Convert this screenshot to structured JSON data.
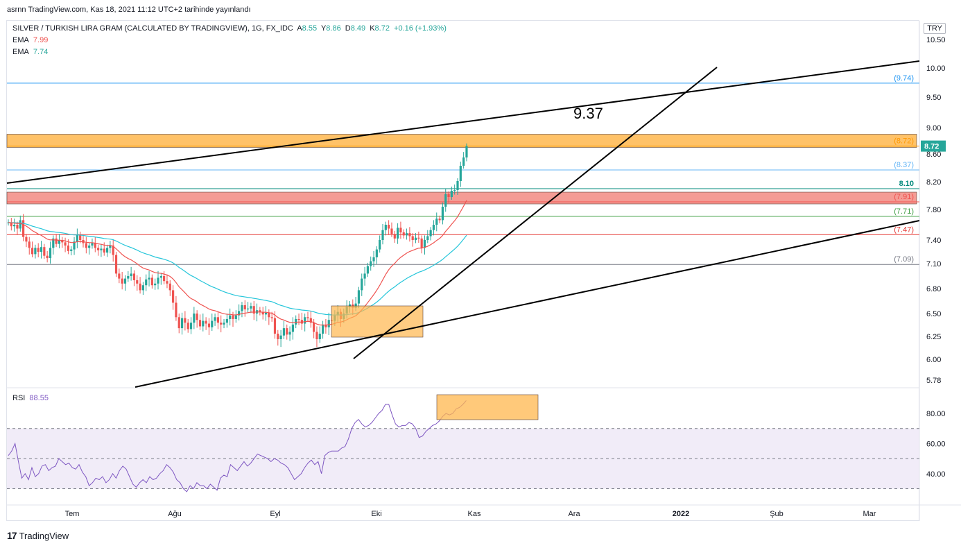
{
  "header": {
    "published": "asrnn TradingView.com, Kas 18, 2021 11:12 UTC+2 tarihinde yayınlandı"
  },
  "legend": {
    "symbol": "SILVER / TURKISH LIRA GRAM (CALCULATED BY TRADINGVIEW), 1G, FX_IDC",
    "a_label": "A",
    "a_value": "8.55",
    "y_label": "Y",
    "y_value": "8.86",
    "d_label": "D",
    "d_value": "8.49",
    "k_label": "K",
    "k_value": "8.72",
    "change": "+0.16 (+1.93%)",
    "ema1_label": "EMA",
    "ema1_value": "7.99",
    "ema2_label": "EMA",
    "ema2_value": "7.74",
    "rsi_label": "RSI",
    "rsi_value": "88.55"
  },
  "currency": "TRY",
  "annotation_text": "9.37",
  "brand": "TradingView",
  "colors": {
    "up": "#26a69a",
    "down": "#ef5350",
    "ema_fast": "#ef5350",
    "ema_slow": "#26c6da",
    "rsi": "#7e57c2",
    "rsi_band": "#ede7f6",
    "zone_orange": "#ffb74d",
    "zone_red": "#f28b82"
  },
  "chart_data": [
    {
      "type": "candlestick",
      "title": "SILVER / TURKISH LIRA GRAM (CALCULATED BY TRADINGVIEW), 1G, FX_IDC",
      "x_tick_labels": [
        "Tem",
        "Ağu",
        "Eyl",
        "Eki",
        "Kas",
        "Ara",
        "2022",
        "Şub",
        "Mar"
      ],
      "y_tick_labels": [
        "10.50",
        "10.00",
        "9.50",
        "9.00",
        "8.60",
        "8.20",
        "7.80",
        "7.40",
        "7.10",
        "6.80",
        "6.50",
        "6.25",
        "6.00",
        "5.78"
      ],
      "last_price": "8.72",
      "price_levels": [
        {
          "label": "(9.74)",
          "value": 9.74,
          "color": "#2196f3"
        },
        {
          "label": "(8.72)",
          "value": 8.72,
          "color": "#ff9800"
        },
        {
          "label": "(8.37)",
          "value": 8.37,
          "color": "#64b5f6"
        },
        {
          "label": "8.10",
          "value": 8.1,
          "color": "#00897b"
        },
        {
          "label": "(7.91)",
          "value": 7.91,
          "color": "#ef5350"
        },
        {
          "label": "(7.71)",
          "value": 7.71,
          "color": "#43a047"
        },
        {
          "label": "(7.47)",
          "value": 7.47,
          "color": "#e53935"
        },
        {
          "label": "(7.09)",
          "value": 7.09,
          "color": "#787b86"
        }
      ],
      "zones": [
        {
          "from": 8.7,
          "to": 8.9,
          "color": "#ffb74d"
        },
        {
          "from": 7.88,
          "to": 8.05,
          "color": "#f28b82"
        }
      ],
      "closes": [
        7.63,
        7.58,
        7.6,
        7.55,
        7.66,
        7.44,
        7.38,
        7.3,
        7.22,
        7.3,
        7.25,
        7.31,
        7.2,
        7.17,
        7.3,
        7.42,
        7.35,
        7.4,
        7.37,
        7.33,
        7.26,
        7.28,
        7.38,
        7.47,
        7.4,
        7.36,
        7.3,
        7.33,
        7.36,
        7.3,
        7.27,
        7.29,
        7.24,
        7.3,
        7.33,
        7.21,
        6.98,
        6.92,
        6.86,
        6.92,
        6.95,
        6.98,
        6.9,
        6.86,
        6.78,
        6.84,
        6.91,
        6.93,
        6.84,
        6.86,
        6.93,
        6.95,
        6.89,
        6.86,
        6.78,
        6.63,
        6.46,
        6.34,
        6.45,
        6.4,
        6.33,
        6.4,
        6.5,
        6.43,
        6.36,
        6.42,
        6.39,
        6.35,
        6.42,
        6.46,
        6.4,
        6.38,
        6.4,
        6.44,
        6.48,
        6.44,
        6.48,
        6.53,
        6.6,
        6.55,
        6.56,
        6.59,
        6.5,
        6.54,
        6.52,
        6.49,
        6.51,
        6.46,
        6.45,
        6.28,
        6.22,
        6.26,
        6.34,
        6.27,
        6.3,
        6.38,
        6.44,
        6.43,
        6.39,
        6.46,
        6.45,
        6.4,
        6.3,
        6.22,
        6.28,
        6.38,
        6.35,
        6.43,
        6.42,
        6.48,
        6.52,
        6.44,
        6.5,
        6.58,
        6.61,
        6.57,
        6.62,
        6.78,
        6.92,
        6.98,
        7.07,
        7.13,
        7.18,
        7.28,
        7.4,
        7.53,
        7.6,
        7.55,
        7.48,
        7.42,
        7.56,
        7.5,
        7.46,
        7.49,
        7.45,
        7.4,
        7.43,
        7.42,
        7.3,
        7.4,
        7.45,
        7.53,
        7.6,
        7.68,
        7.66,
        7.84,
        8.02,
        7.98,
        8.07,
        8.08,
        8.21,
        8.43,
        8.55,
        8.72
      ],
      "ema_fast_last": 7.99,
      "ema_slow_last": 7.74,
      "annotation": "9.37"
    },
    {
      "type": "line",
      "title": "RSI",
      "y_tick_labels": [
        "80.00",
        "60.00",
        "40.00"
      ],
      "bands": [
        70,
        50,
        30
      ],
      "values": [
        52,
        55,
        60,
        48,
        37,
        40,
        36,
        44,
        38,
        40,
        45,
        46,
        42,
        44,
        45,
        50,
        48,
        46,
        47,
        44,
        43,
        46,
        41,
        38,
        32,
        34,
        37,
        36,
        38,
        34,
        36,
        40,
        37,
        42,
        45,
        43,
        38,
        33,
        31,
        34,
        36,
        34,
        38,
        36,
        37,
        40,
        42,
        46,
        44,
        41,
        36,
        34,
        30,
        28,
        32,
        30,
        34,
        32,
        32,
        30,
        33,
        31,
        29,
        37,
        39,
        38,
        46,
        44,
        42,
        45,
        48,
        45,
        47,
        50,
        53,
        52,
        51,
        50,
        48,
        50,
        49,
        47,
        46,
        44,
        40,
        36,
        38,
        40,
        44,
        47,
        49,
        46,
        48,
        40,
        52,
        54,
        55,
        55,
        55,
        57,
        58,
        63,
        70,
        74,
        76,
        73,
        71,
        72,
        74,
        77,
        80,
        82,
        86,
        86,
        79,
        73,
        71,
        72,
        72,
        74,
        73,
        70,
        64,
        65,
        68,
        70,
        72,
        73,
        75,
        78,
        80,
        79,
        80,
        83,
        84,
        86,
        88.55
      ],
      "last_value": "88.55"
    }
  ]
}
